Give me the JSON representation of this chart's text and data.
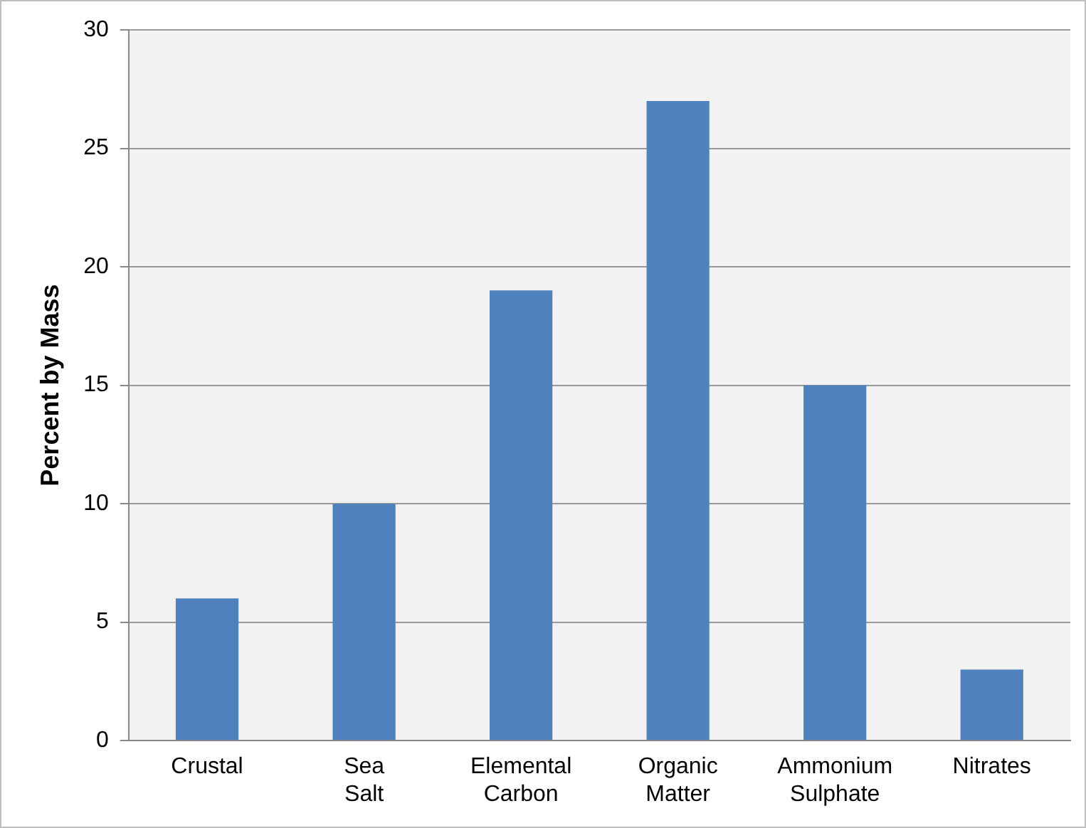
{
  "chart_data": {
    "type": "bar",
    "ylabel": "Percent by Mass",
    "categories": [
      "Crustal",
      "Sea Salt",
      "Elemental Carbon",
      "Organic Matter",
      "Ammonium Sulphate",
      "Nitrates"
    ],
    "values": [
      6,
      10,
      19,
      27,
      15,
      3
    ],
    "color": "#4f81bd",
    "ylim": [
      0,
      30
    ],
    "yticks": [
      0,
      5,
      10,
      15,
      20,
      25,
      30
    ],
    "grid": "y",
    "legend": false
  }
}
